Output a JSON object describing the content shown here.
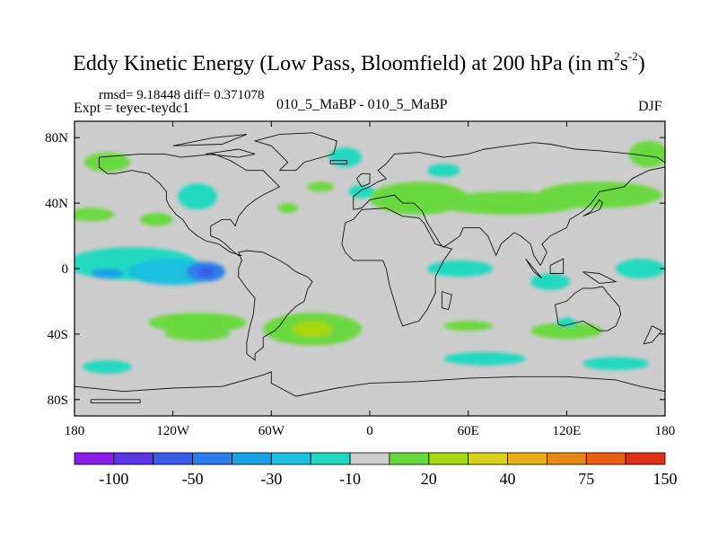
{
  "chart_data": {
    "type": "heatmap",
    "title_main": "Eddy Kinetic Energy (Low Pass, Bloomfield) at 200 hPa (in m",
    "title_sup1": "2",
    "title_mid": "s",
    "title_sup2": "-2",
    "title_end": ")",
    "stats": "rmsd= 9.18448 diff= 0.371078",
    "expt": "Expt = teyec-teydc1",
    "case_name": "010_5_MaBP - 010_5_MaBP",
    "season": "DJF",
    "x_range": [
      -180,
      180
    ],
    "y_range": [
      -90,
      90
    ],
    "x_ticks": [
      {
        "value": -180,
        "label": "180"
      },
      {
        "value": -120,
        "label": "120W"
      },
      {
        "value": -60,
        "label": "60W"
      },
      {
        "value": 0,
        "label": "0"
      },
      {
        "value": 60,
        "label": "60E"
      },
      {
        "value": 120,
        "label": "120E"
      },
      {
        "value": 180,
        "label": "180"
      }
    ],
    "y_ticks": [
      {
        "value": 80,
        "label": "80N"
      },
      {
        "value": 40,
        "label": "40N"
      },
      {
        "value": 0,
        "label": "0"
      },
      {
        "value": -40,
        "label": "40S"
      },
      {
        "value": -80,
        "label": "80S"
      }
    ],
    "background_color": "#cdcdcd",
    "colorbar": {
      "colors": [
        "#8a1ee8",
        "#5a36e0",
        "#3a5ae8",
        "#2f7ee8",
        "#1ea0e6",
        "#1ec0e0",
        "#20d8c0",
        "#cdcdcd",
        "#6ad840",
        "#a8d810",
        "#d8d018",
        "#e8b010",
        "#e88818",
        "#e86018",
        "#e03018"
      ],
      "labels": [
        {
          "index": 1,
          "text": "-100"
        },
        {
          "index": 3,
          "text": "-50"
        },
        {
          "index": 5,
          "text": "-30"
        },
        {
          "index": 7,
          "text": "-10"
        },
        {
          "index": 9,
          "text": "20"
        },
        {
          "index": 11,
          "text": "40"
        },
        {
          "index": 13,
          "text": "75"
        },
        {
          "index": 15,
          "text": "150"
        }
      ]
    },
    "anomalies": [
      {
        "lon": -160,
        "lat": 65,
        "rlon": 14,
        "rlat": 6,
        "color": "#6ad840"
      },
      {
        "lon": -105,
        "lat": 44,
        "rlon": 12,
        "rlat": 8,
        "color": "#20d8c0"
      },
      {
        "lon": -170,
        "lat": 33,
        "rlon": 14,
        "rlat": 4,
        "color": "#6ad840"
      },
      {
        "lon": -130,
        "lat": 30,
        "rlon": 10,
        "rlat": 4,
        "color": "#6ad840"
      },
      {
        "lon": -50,
        "lat": 37,
        "rlon": 6,
        "rlat": 3,
        "color": "#6ad840"
      },
      {
        "lon": -15,
        "lat": 68,
        "rlon": 10,
        "rlat": 6,
        "color": "#20d8c0"
      },
      {
        "lon": -30,
        "lat": 50,
        "rlon": 8,
        "rlat": 3,
        "color": "#6ad840"
      },
      {
        "lon": -5,
        "lat": 47,
        "rlon": 8,
        "rlat": 4,
        "color": "#20d8c0"
      },
      {
        "lon": 45,
        "lat": 60,
        "rlon": 10,
        "rlat": 4,
        "color": "#20d8c0"
      },
      {
        "lon": 30,
        "lat": 43,
        "rlon": 30,
        "rlat": 10,
        "color": "#6ad840"
      },
      {
        "lon": 85,
        "lat": 40,
        "rlon": 45,
        "rlat": 7,
        "color": "#6ad840"
      },
      {
        "lon": 140,
        "lat": 45,
        "rlon": 38,
        "rlat": 8,
        "color": "#6ad840"
      },
      {
        "lon": 170,
        "lat": 70,
        "rlon": 12,
        "rlat": 8,
        "color": "#6ad840"
      },
      {
        "lon": -145,
        "lat": 3,
        "rlon": 40,
        "rlat": 10,
        "color": "#20d8c0"
      },
      {
        "lon": -120,
        "lat": -2,
        "rlon": 28,
        "rlat": 8,
        "color": "#1ec0e0"
      },
      {
        "lon": -100,
        "lat": -2,
        "rlon": 12,
        "rlat": 6,
        "color": "#2f7ee8"
      },
      {
        "lon": -100,
        "lat": -2,
        "rlon": 5,
        "rlat": 3,
        "color": "#3a5ae8"
      },
      {
        "lon": -160,
        "lat": -3,
        "rlon": 10,
        "rlat": 3,
        "color": "#1ea0e6"
      },
      {
        "lon": 55,
        "lat": 0,
        "rlon": 20,
        "rlat": 5,
        "color": "#20d8c0"
      },
      {
        "lon": 110,
        "lat": -8,
        "rlon": 12,
        "rlat": 5,
        "color": "#20d8c0"
      },
      {
        "lon": 165,
        "lat": 0,
        "rlon": 15,
        "rlat": 6,
        "color": "#20d8c0"
      },
      {
        "lon": -105,
        "lat": -33,
        "rlon": 30,
        "rlat": 6,
        "color": "#6ad840"
      },
      {
        "lon": -105,
        "lat": -40,
        "rlon": 20,
        "rlat": 4,
        "color": "#6ad840"
      },
      {
        "lon": -35,
        "lat": -37,
        "rlon": 30,
        "rlat": 10,
        "color": "#6ad840"
      },
      {
        "lon": -35,
        "lat": -37,
        "rlon": 12,
        "rlat": 5,
        "color": "#a8d810"
      },
      {
        "lon": 60,
        "lat": -35,
        "rlon": 15,
        "rlat": 3,
        "color": "#6ad840"
      },
      {
        "lon": 120,
        "lat": -38,
        "rlon": 22,
        "rlat": 5,
        "color": "#6ad840"
      },
      {
        "lon": 120,
        "lat": -33,
        "rlon": 6,
        "rlat": 3,
        "color": "#20d8c0"
      },
      {
        "lon": -160,
        "lat": -60,
        "rlon": 15,
        "rlat": 4,
        "color": "#20d8c0"
      },
      {
        "lon": 70,
        "lat": -55,
        "rlon": 25,
        "rlat": 4,
        "color": "#20d8c0"
      },
      {
        "lon": 150,
        "lat": -58,
        "rlon": 20,
        "rlat": 4,
        "color": "#20d8c0"
      }
    ],
    "coastlines": [
      [
        [
          -165,
          68
        ],
        [
          -140,
          70
        ],
        [
          -125,
          70
        ],
        [
          -115,
          68
        ],
        [
          -95,
          70
        ],
        [
          -85,
          66
        ],
        [
          -80,
          63
        ],
        [
          -75,
          60
        ],
        [
          -65,
          60
        ],
        [
          -60,
          55
        ],
        [
          -55,
          50
        ],
        [
          -65,
          45
        ],
        [
          -70,
          42
        ],
        [
          -75,
          38
        ],
        [
          -80,
          32
        ],
        [
          -82,
          26
        ],
        [
          -85,
          30
        ],
        [
          -90,
          30
        ],
        [
          -97,
          26
        ],
        [
          -97,
          20
        ],
        [
          -92,
          18
        ],
        [
          -88,
          15
        ],
        [
          -85,
          12
        ],
        [
          -80,
          8
        ],
        [
          -78,
          8
        ],
        [
          -85,
          10
        ],
        [
          -92,
          15
        ],
        [
          -100,
          17
        ],
        [
          -105,
          20
        ],
        [
          -110,
          24
        ],
        [
          -114,
          30
        ],
        [
          -118,
          33
        ],
        [
          -122,
          38
        ],
        [
          -124,
          42
        ],
        [
          -124,
          47
        ],
        [
          -128,
          52
        ],
        [
          -135,
          58
        ],
        [
          -145,
          60
        ],
        [
          -155,
          58
        ],
        [
          -160,
          58
        ],
        [
          -165,
          62
        ],
        [
          -165,
          68
        ]
      ],
      [
        [
          -80,
          10
        ],
        [
          -75,
          11
        ],
        [
          -65,
          10
        ],
        [
          -55,
          5
        ],
        [
          -50,
          2
        ],
        [
          -45,
          -2
        ],
        [
          -38,
          -5
        ],
        [
          -35,
          -8
        ],
        [
          -38,
          -13
        ],
        [
          -40,
          -20
        ],
        [
          -45,
          -23
        ],
        [
          -50,
          -28
        ],
        [
          -55,
          -35
        ],
        [
          -58,
          -38
        ],
        [
          -65,
          -42
        ],
        [
          -65,
          -48
        ],
        [
          -70,
          -52
        ],
        [
          -70,
          -56
        ],
        [
          -75,
          -52
        ],
        [
          -75,
          -45
        ],
        [
          -73,
          -35
        ],
        [
          -71,
          -28
        ],
        [
          -70,
          -18
        ],
        [
          -75,
          -12
        ],
        [
          -80,
          -5
        ],
        [
          -80,
          0
        ],
        [
          -78,
          5
        ],
        [
          -80,
          10
        ]
      ],
      [
        [
          -55,
          60
        ],
        [
          -45,
          60
        ],
        [
          -40,
          65
        ],
        [
          -22,
          70
        ],
        [
          -20,
          78
        ],
        [
          -35,
          83
        ],
        [
          -55,
          82
        ],
        [
          -70,
          78
        ],
        [
          -60,
          75
        ],
        [
          -55,
          70
        ],
        [
          -50,
          65
        ],
        [
          -55,
          60
        ]
      ],
      [
        [
          -15,
          28
        ],
        [
          -10,
          30
        ],
        [
          -5,
          36
        ],
        [
          10,
          37
        ],
        [
          20,
          32
        ],
        [
          30,
          31
        ],
        [
          33,
          28
        ],
        [
          40,
          15
        ],
        [
          50,
          12
        ],
        [
          45,
          5
        ],
        [
          40,
          -5
        ],
        [
          40,
          -15
        ],
        [
          35,
          -25
        ],
        [
          30,
          -32
        ],
        [
          20,
          -35
        ],
        [
          18,
          -30
        ],
        [
          15,
          -20
        ],
        [
          12,
          -10
        ],
        [
          10,
          0
        ],
        [
          8,
          5
        ],
        [
          0,
          5
        ],
        [
          -10,
          5
        ],
        [
          -15,
          10
        ],
        [
          -17,
          15
        ],
        [
          -15,
          28
        ]
      ],
      [
        [
          -10,
          36
        ],
        [
          -10,
          44
        ],
        [
          -5,
          48
        ],
        [
          0,
          50
        ],
        [
          5,
          53
        ],
        [
          10,
          55
        ],
        [
          5,
          60
        ],
        [
          10,
          64
        ],
        [
          15,
          70
        ],
        [
          30,
          71
        ],
        [
          45,
          68
        ],
        [
          60,
          70
        ],
        [
          70,
          73
        ],
        [
          85,
          75
        ],
        [
          100,
          77
        ],
        [
          110,
          76
        ],
        [
          125,
          73
        ],
        [
          140,
          72
        ],
        [
          160,
          70
        ],
        [
          175,
          68
        ],
        [
          180,
          65
        ],
        [
          180,
          62
        ],
        [
          170,
          60
        ],
        [
          160,
          55
        ],
        [
          155,
          50
        ],
        [
          140,
          47
        ],
        [
          135,
          40
        ],
        [
          130,
          35
        ],
        [
          122,
          30
        ],
        [
          120,
          25
        ],
        [
          110,
          20
        ],
        [
          105,
          15
        ],
        [
          108,
          10
        ],
        [
          104,
          2
        ],
        [
          100,
          8
        ],
        [
          98,
          15
        ],
        [
          92,
          20
        ],
        [
          88,
          22
        ],
        [
          80,
          15
        ],
        [
          77,
          8
        ],
        [
          72,
          20
        ],
        [
          67,
          25
        ],
        [
          57,
          25
        ],
        [
          55,
          20
        ],
        [
          45,
          13
        ],
        [
          43,
          15
        ],
        [
          35,
          28
        ],
        [
          32,
          35
        ],
        [
          27,
          40
        ],
        [
          20,
          40
        ],
        [
          15,
          45
        ],
        [
          10,
          44
        ],
        [
          5,
          43
        ],
        [
          0,
          42
        ],
        [
          -5,
          37
        ],
        [
          -10,
          36
        ]
      ],
      [
        [
          113,
          -22
        ],
        [
          115,
          -34
        ],
        [
          118,
          -35
        ],
        [
          130,
          -32
        ],
        [
          135,
          -35
        ],
        [
          140,
          -38
        ],
        [
          145,
          -38
        ],
        [
          150,
          -35
        ],
        [
          153,
          -28
        ],
        [
          152,
          -23
        ],
        [
          145,
          -15
        ],
        [
          142,
          -11
        ],
        [
          136,
          -12
        ],
        [
          130,
          -12
        ],
        [
          125,
          -15
        ],
        [
          120,
          -20
        ],
        [
          113,
          -22
        ]
      ],
      [
        [
          -180,
          -72
        ],
        [
          -150,
          -75
        ],
        [
          -120,
          -73
        ],
        [
          -90,
          -72
        ],
        [
          -65,
          -65
        ],
        [
          -60,
          -63
        ],
        [
          -60,
          -70
        ],
        [
          -45,
          -78
        ],
        [
          -20,
          -73
        ],
        [
          0,
          -70
        ],
        [
          30,
          -69
        ],
        [
          60,
          -67
        ],
        [
          90,
          -66
        ],
        [
          120,
          -66
        ],
        [
          150,
          -68
        ],
        [
          165,
          -72
        ],
        [
          180,
          -75
        ]
      ],
      [
        [
          -170,
          -80
        ],
        [
          -140,
          -80
        ],
        [
          -140,
          -82
        ],
        [
          -170,
          -82
        ],
        [
          -170,
          -80
        ]
      ],
      [
        [
          95,
          6
        ],
        [
          105,
          -6
        ],
        [
          100,
          -2
        ],
        [
          95,
          6
        ]
      ],
      [
        [
          110,
          2
        ],
        [
          118,
          6
        ],
        [
          118,
          -3
        ],
        [
          110,
          -3
        ],
        [
          110,
          2
        ]
      ],
      [
        [
          130,
          -2
        ],
        [
          140,
          -3
        ],
        [
          150,
          -8
        ],
        [
          140,
          -9
        ],
        [
          130,
          -2
        ]
      ],
      [
        [
          130,
          32
        ],
        [
          135,
          34
        ],
        [
          140,
          36
        ],
        [
          142,
          40
        ],
        [
          140,
          42
        ],
        [
          135,
          35
        ],
        [
          130,
          32
        ]
      ],
      [
        [
          -5,
          50
        ],
        [
          0,
          52
        ],
        [
          0,
          58
        ],
        [
          -5,
          58
        ],
        [
          -8,
          55
        ],
        [
          -5,
          50
        ]
      ],
      [
        [
          -24,
          64
        ],
        [
          -14,
          64
        ],
        [
          -14,
          66
        ],
        [
          -24,
          66
        ],
        [
          -24,
          64
        ]
      ],
      [
        [
          44,
          -14
        ],
        [
          50,
          -16
        ],
        [
          48,
          -25
        ],
        [
          44,
          -24
        ],
        [
          44,
          -14
        ]
      ],
      [
        [
          172,
          -35
        ],
        [
          178,
          -38
        ],
        [
          172,
          -45
        ],
        [
          167,
          -46
        ],
        [
          172,
          -35
        ]
      ],
      [
        [
          -100,
          70
        ],
        [
          -80,
          73
        ],
        [
          -70,
          70
        ],
        [
          -80,
          68
        ],
        [
          -100,
          70
        ]
      ],
      [
        [
          -120,
          75
        ],
        [
          -95,
          80
        ],
        [
          -75,
          82
        ],
        [
          -90,
          76
        ],
        [
          -120,
          75
        ]
      ]
    ]
  }
}
